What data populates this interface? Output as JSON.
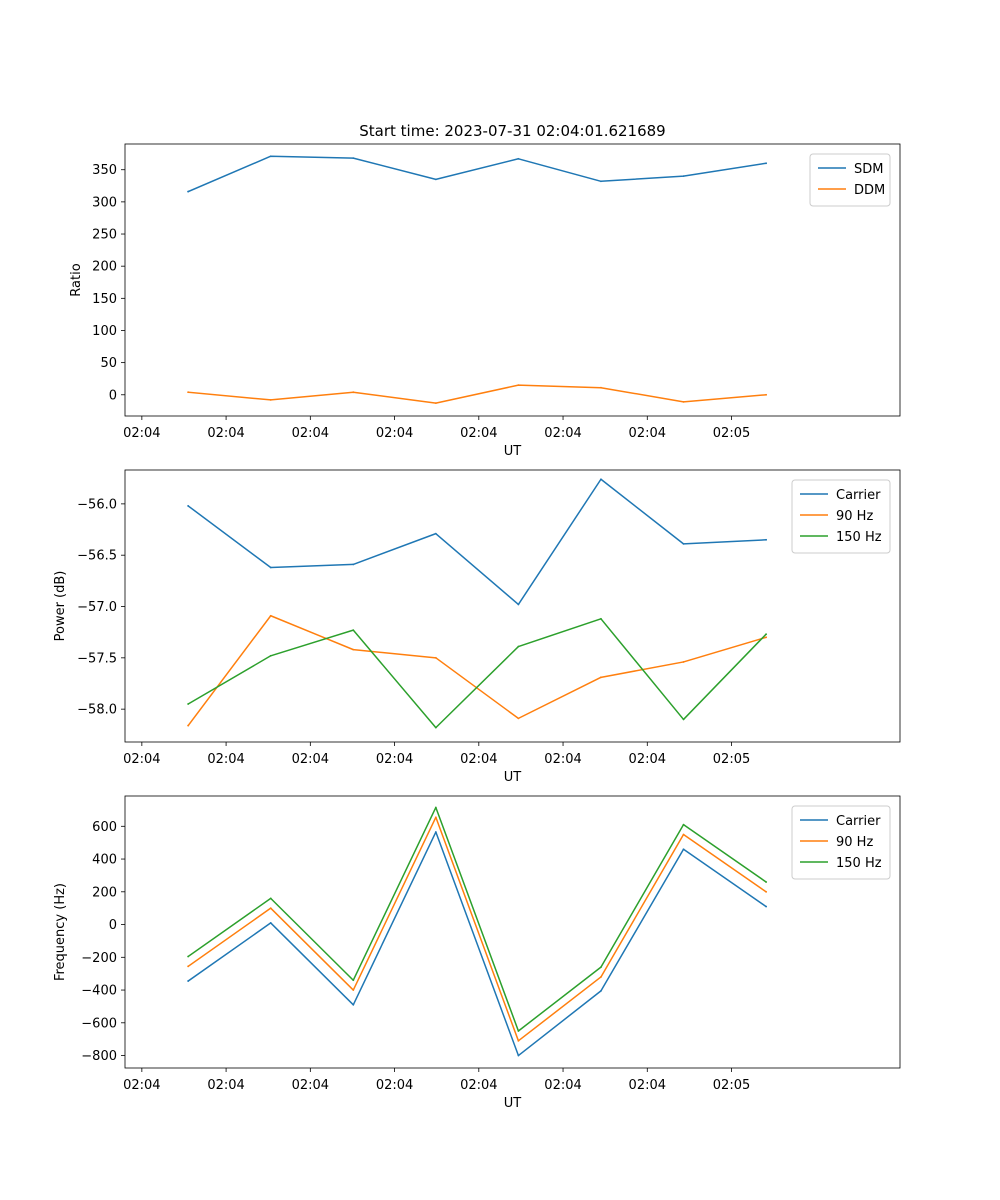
{
  "figure_title": "Start time: 2023-07-31 02:04:01.621689",
  "colors": {
    "blue": "#1f77b4",
    "orange": "#ff7f0e",
    "green": "#2ca02c"
  },
  "chart_data": [
    {
      "type": "line",
      "title": "Start time: 2023-07-31 02:04:01.621689",
      "xlabel": "UT",
      "ylabel": "Ratio",
      "x_tick_labels": [
        "02:04",
        "02:04",
        "02:04",
        "02:04",
        "02:04",
        "02:04",
        "02:04"
      ],
      "x_tick_last_label": "02:05",
      "xlim": [
        -0.2,
        9.0
      ],
      "x": [
        0.55,
        1.53,
        2.51,
        3.49,
        4.47,
        5.45,
        6.43,
        7.41
      ],
      "ylim": [
        -33,
        390
      ],
      "yticks": [
        0,
        50,
        100,
        150,
        200,
        250,
        300,
        350
      ],
      "ytick_labels": [
        "0",
        "50",
        "100",
        "150",
        "200",
        "250",
        "300",
        "350"
      ],
      "legend_loc": "upper right",
      "series": [
        {
          "name": "SDM",
          "color": "#1f77b4",
          "values": [
            316,
            371,
            368,
            335,
            367,
            332,
            340,
            360
          ]
        },
        {
          "name": "DDM",
          "color": "#ff7f0e",
          "values": [
            4,
            -8,
            4,
            -13,
            15,
            11,
            -11,
            0
          ]
        }
      ]
    },
    {
      "type": "line",
      "title": "",
      "xlabel": "UT",
      "ylabel": "Power (dB)",
      "x_tick_labels": [
        "02:04",
        "02:04",
        "02:04",
        "02:04",
        "02:04",
        "02:04",
        "02:04"
      ],
      "x_tick_last_label": "02:05",
      "xlim": [
        -0.2,
        9.0
      ],
      "x": [
        0.55,
        1.53,
        2.51,
        3.49,
        4.47,
        5.45,
        6.43,
        7.41
      ],
      "ylim": [
        -58.32,
        -55.67
      ],
      "yticks": [
        -58.0,
        -57.5,
        -57.0,
        -56.5,
        -56.0
      ],
      "ytick_labels": [
        "−58.0",
        "−57.5",
        "−57.0",
        "−56.5",
        "−56.0"
      ],
      "legend_loc": "upper right",
      "series": [
        {
          "name": "Carrier",
          "color": "#1f77b4",
          "values": [
            -56.02,
            -56.62,
            -56.59,
            -56.29,
            -56.98,
            -55.76,
            -56.39,
            -56.35
          ]
        },
        {
          "name": "90 Hz",
          "color": "#ff7f0e",
          "values": [
            -58.16,
            -57.09,
            -57.42,
            -57.5,
            -58.09,
            -57.69,
            -57.54,
            -57.3
          ]
        },
        {
          "name": "150 Hz",
          "color": "#2ca02c",
          "values": [
            -57.95,
            -57.48,
            -57.23,
            -58.18,
            -57.39,
            -57.12,
            -58.1,
            -57.27
          ]
        }
      ]
    },
    {
      "type": "line",
      "title": "",
      "xlabel": "UT",
      "ylabel": "Frequency (Hz)",
      "x_tick_labels": [
        "02:04",
        "02:04",
        "02:04",
        "02:04",
        "02:04",
        "02:04",
        "02:04"
      ],
      "x_tick_last_label": "02:05",
      "xlim": [
        -0.2,
        9.0
      ],
      "x": [
        0.55,
        1.53,
        2.51,
        3.49,
        4.47,
        5.45,
        6.43,
        7.41
      ],
      "ylim": [
        -876,
        785
      ],
      "yticks": [
        -800,
        -600,
        -400,
        -200,
        0,
        200,
        400,
        600
      ],
      "ytick_labels": [
        "−800",
        "−600",
        "−400",
        "−200",
        "0",
        "200",
        "400",
        "600"
      ],
      "legend_loc": "upper right",
      "series": [
        {
          "name": "Carrier",
          "color": "#1f77b4",
          "values": [
            -345,
            10,
            -490,
            565,
            -800,
            -405,
            460,
            110
          ]
        },
        {
          "name": "90 Hz",
          "color": "#ff7f0e",
          "values": [
            -255,
            100,
            -400,
            655,
            -710,
            -320,
            550,
            200
          ]
        },
        {
          "name": "150 Hz",
          "color": "#2ca02c",
          "values": [
            -195,
            160,
            -340,
            715,
            -650,
            -260,
            610,
            260
          ]
        }
      ]
    }
  ]
}
